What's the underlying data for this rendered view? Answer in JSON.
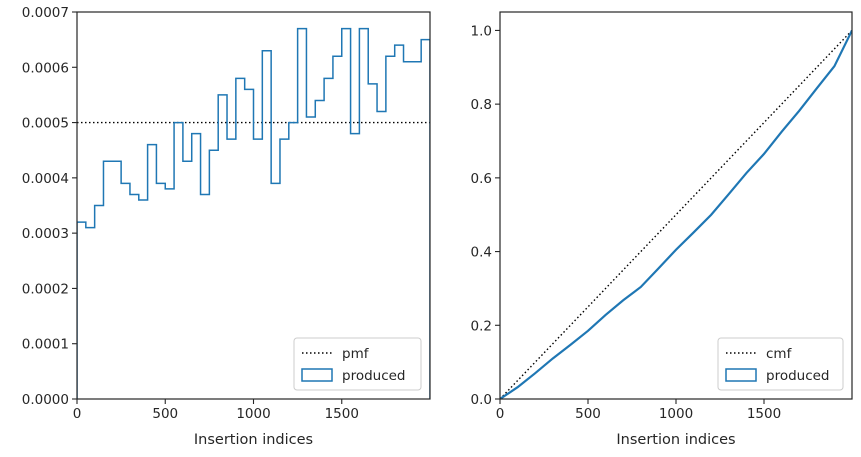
{
  "chart_data": [
    {
      "type": "histogram-step",
      "xlabel": "Insertion indices",
      "ylabel": "",
      "xlim": [
        0,
        2000
      ],
      "ylim": [
        0,
        0.0007
      ],
      "x_ticks": [
        0,
        500,
        1000,
        1500
      ],
      "x_tick_labels": [
        "0",
        "500",
        "1000",
        "1500"
      ],
      "y_ticks": [
        0,
        0.0001,
        0.0002,
        0.0003,
        0.0004,
        0.0005,
        0.0006,
        0.0007
      ],
      "y_tick_labels": [
        "0.0000",
        "0.0001",
        "0.0002",
        "0.0003",
        "0.0004",
        "0.0005",
        "0.0006",
        "0.0007"
      ],
      "grid": false,
      "legend_position": "lower-right",
      "series": [
        {
          "name": "pmf",
          "style": "dotted",
          "color": "#000000",
          "x": [
            0,
            2000
          ],
          "values": [
            0.0005,
            0.0005
          ]
        },
        {
          "name": "produced",
          "style": "step",
          "color": "#1f77b4",
          "bin_edges": [
            0,
            50,
            100,
            150,
            200,
            250,
            300,
            350,
            400,
            450,
            500,
            550,
            600,
            650,
            700,
            750,
            800,
            850,
            900,
            950,
            1000,
            1050,
            1100,
            1150,
            1200,
            1250,
            1300,
            1350,
            1400,
            1450,
            1500,
            1550,
            1600,
            1650,
            1700,
            1750,
            1800,
            1850,
            1900,
            1950,
            2000
          ],
          "values": [
            0.00032,
            0.00031,
            0.00035,
            0.00043,
            0.00043,
            0.00039,
            0.00037,
            0.00036,
            0.00046,
            0.00039,
            0.00038,
            0.0005,
            0.00043,
            0.00048,
            0.00037,
            0.00045,
            0.00055,
            0.00047,
            0.00058,
            0.00056,
            0.00047,
            0.00063,
            0.00039,
            0.00047,
            0.0005,
            0.00067,
            0.00051,
            0.00054,
            0.00058,
            0.00062,
            0.00067,
            0.00048,
            0.00067,
            0.00057,
            0.00052,
            0.00062,
            0.00064,
            0.00061,
            0.00061,
            0.00065
          ]
        }
      ]
    },
    {
      "type": "line",
      "xlabel": "Insertion indices",
      "ylabel": "",
      "xlim": [
        0,
        2000
      ],
      "ylim": [
        0,
        1.05
      ],
      "x_ticks": [
        0,
        500,
        1000,
        1500
      ],
      "x_tick_labels": [
        "0",
        "500",
        "1000",
        "1500"
      ],
      "y_ticks": [
        0,
        0.2,
        0.4,
        0.6,
        0.8,
        1.0
      ],
      "y_tick_labels": [
        "0.0",
        "0.2",
        "0.4",
        "0.6",
        "0.8",
        "1.0"
      ],
      "grid": false,
      "legend_position": "lower-right",
      "series": [
        {
          "name": "cmf",
          "style": "dotted",
          "color": "#000000",
          "x": [
            0,
            2000
          ],
          "values": [
            0,
            1.0
          ]
        },
        {
          "name": "produced",
          "style": "solid",
          "color": "#1f77b4",
          "x": [
            0,
            100,
            200,
            300,
            400,
            500,
            600,
            700,
            800,
            900,
            1000,
            1100,
            1200,
            1300,
            1400,
            1500,
            1600,
            1700,
            1800,
            1900,
            2000
          ],
          "values": [
            0,
            0.032,
            0.07,
            0.11,
            0.147,
            0.185,
            0.228,
            0.268,
            0.304,
            0.354,
            0.405,
            0.452,
            0.5,
            0.556,
            0.613,
            0.665,
            0.725,
            0.782,
            0.843,
            0.903,
            1.0
          ]
        }
      ]
    }
  ]
}
